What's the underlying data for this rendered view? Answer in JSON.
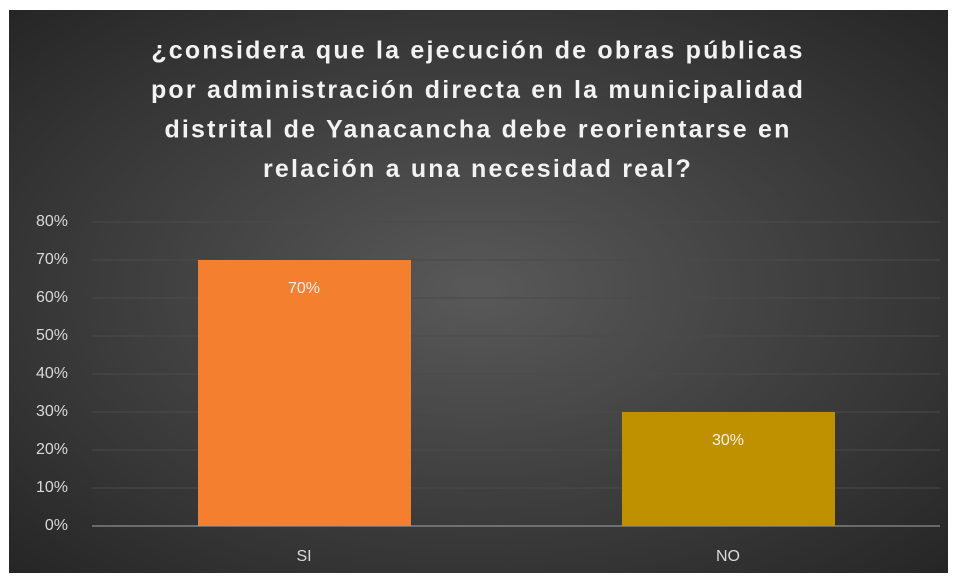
{
  "chart_data": {
    "type": "bar",
    "title": [
      "¿considera que la ejecución de obras públicas",
      "por administración directa en la municipalidad",
      "distrital de Yanacancha debe reorientarse en",
      "relación a una necesidad real?"
    ],
    "categories": [
      "SI",
      "NO"
    ],
    "values": [
      70,
      30
    ],
    "value_labels": [
      "70%",
      "30%"
    ],
    "colors": [
      "#f47f2e",
      "#bf9000"
    ],
    "ylim": [
      0,
      80
    ],
    "yticks": [
      {
        "value": 0,
        "label": "0%"
      },
      {
        "value": 10,
        "label": "10%"
      },
      {
        "value": 20,
        "label": "20%"
      },
      {
        "value": 30,
        "label": "30%"
      },
      {
        "value": 40,
        "label": "40%"
      },
      {
        "value": 50,
        "label": "50%"
      },
      {
        "value": 60,
        "label": "60%"
      },
      {
        "value": 70,
        "label": "70%"
      },
      {
        "value": 80,
        "label": "80%"
      }
    ],
    "grid": true
  }
}
